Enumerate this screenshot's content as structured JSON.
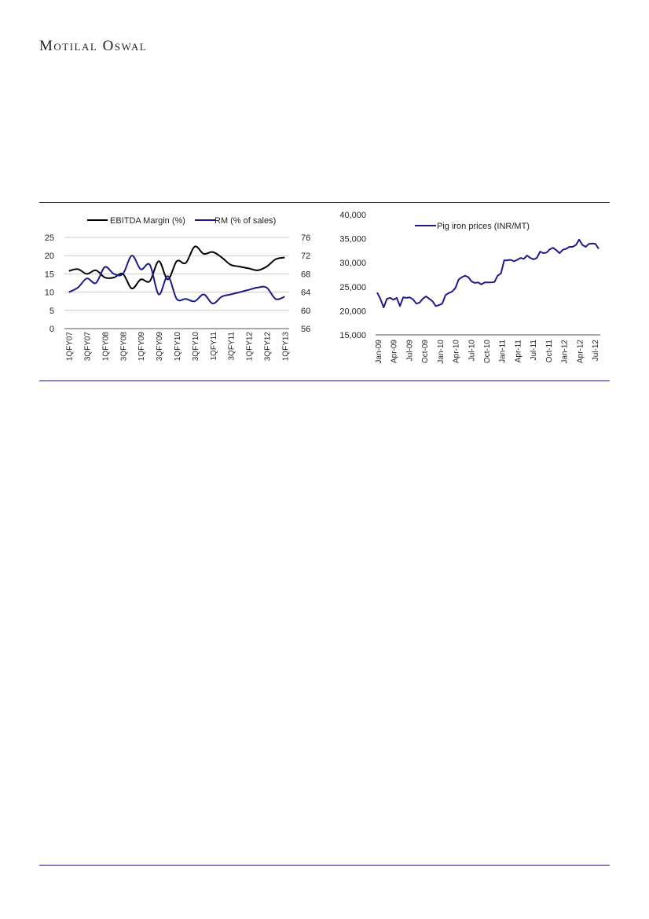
{
  "header": {
    "brand": "Motilal Oswal"
  },
  "colors": {
    "rule": "#1a1a6e",
    "ebitda": "#000000",
    "rm": "#1f1a8c",
    "grid": "#c9c9c9"
  },
  "chart_data": [
    {
      "type": "line",
      "title": "",
      "legend_position": "top",
      "grid": true,
      "categories": [
        "1QFY07",
        "2QFY07",
        "3QFY07",
        "4QFY07",
        "1QFY08",
        "2QFY08",
        "3QFY08",
        "4QFY08",
        "1QFY09",
        "2QFY09",
        "3QFY09",
        "4QFY09",
        "1QFY10",
        "2QFY10",
        "3QFY10",
        "4QFY10",
        "1QFY11",
        "2QFY11",
        "3QFY11",
        "4QFY11",
        "1QFY12",
        "2QFY12",
        "3QFY12",
        "4QFY12",
        "1QFY13"
      ],
      "tick_labels": [
        "1QFY07",
        "3QFY07",
        "1QFY08",
        "3QFY08",
        "1QFY09",
        "3QFY09",
        "1QFY10",
        "3QFY10",
        "1QFY11",
        "3QFY11",
        "1QFY12",
        "3QFY12",
        "1QFY13"
      ],
      "y_left": {
        "ticks": [
          "0",
          "5",
          "10",
          "15",
          "20",
          "25"
        ],
        "ylim": [
          0,
          25
        ]
      },
      "y_right": {
        "ticks": [
          "56",
          "60",
          "64",
          "68",
          "72",
          "76"
        ],
        "ylim": [
          56,
          76
        ]
      },
      "series": [
        {
          "name": "EBITDA Margin (%)",
          "axis": "left",
          "color": "#000000",
          "values": [
            15.8,
            16.3,
            15.0,
            16.0,
            14.0,
            14.0,
            15.0,
            11.0,
            13.5,
            13.0,
            18.5,
            13.5,
            18.5,
            18.0,
            22.5,
            20.5,
            21.0,
            19.5,
            17.5,
            17.0,
            16.5,
            16.0,
            17.0,
            19.0,
            19.5
          ]
        },
        {
          "name": "RM (% of sales)",
          "axis": "right",
          "color": "#1f1a8c",
          "values": [
            64.0,
            65.0,
            67.0,
            66.0,
            69.5,
            68.0,
            68.0,
            72.0,
            69.0,
            70.0,
            63.5,
            67.5,
            62.5,
            62.5,
            62.0,
            63.5,
            61.5,
            63.0,
            63.5,
            64.0,
            64.5,
            65.0,
            65.0,
            62.5,
            63.0
          ]
        }
      ]
    },
    {
      "type": "line",
      "title": "",
      "legend_position": "top",
      "grid": false,
      "y_ticks": [
        "15,000",
        "20,000",
        "25,000",
        "30,000",
        "35,000",
        "40,000"
      ],
      "ylim": [
        15000,
        40000
      ],
      "x_ticks": [
        "Jan-09",
        "Apr-09",
        "Jul-09",
        "Oct-09",
        "Jan-10",
        "Apr-10",
        "Jul-10",
        "Oct-10",
        "Jan-11",
        "Apr-11",
        "Jul-11",
        "Oct-11",
        "Jan-12",
        "Apr-12",
        "Jul-12"
      ],
      "series": [
        {
          "name": "Pig iron prices (INR/MT)",
          "color": "#1f1a8c",
          "values": [
            23800,
            22500,
            20700,
            22500,
            22700,
            22300,
            22700,
            21000,
            22800,
            22700,
            22800,
            22400,
            21500,
            21700,
            22500,
            23000,
            22500,
            22000,
            21000,
            21200,
            21500,
            23300,
            23700,
            24000,
            24700,
            26500,
            27000,
            27300,
            27000,
            26100,
            25800,
            25900,
            25500,
            25900,
            25900,
            25900,
            26000,
            27300,
            27800,
            30500,
            30500,
            30600,
            30300,
            30600,
            31000,
            30800,
            31500,
            31000,
            30700,
            31000,
            32300,
            32000,
            32100,
            32800,
            33100,
            32600,
            32000,
            32700,
            32900,
            33300,
            33300,
            33700,
            34800,
            33700,
            33300,
            33900,
            34000,
            33900,
            32900
          ]
        }
      ]
    }
  ]
}
